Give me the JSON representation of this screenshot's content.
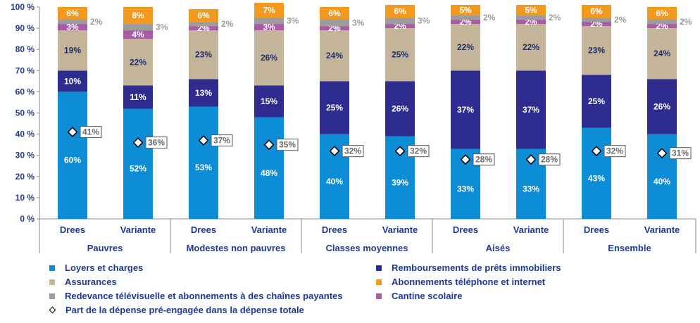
{
  "chart_data": {
    "type": "bar",
    "stacked": true,
    "ylim": [
      0,
      100
    ],
    "yticks": [
      "0 %",
      "10 %",
      "20 %",
      "30 %",
      "40 %",
      "50 %",
      "60 %",
      "70 %",
      "80 %",
      "90 %",
      "100 %"
    ],
    "groups": [
      "Pauvres",
      "Modestes non pauvres",
      "Classes moyennes",
      "Aisés",
      "Ensemble"
    ],
    "bars": [
      {
        "label": "Drees",
        "group": "Pauvres"
      },
      {
        "label": "Variante",
        "group": "Pauvres"
      },
      {
        "label": "Drees",
        "group": "Modestes non pauvres"
      },
      {
        "label": "Variante",
        "group": "Modestes non pauvres"
      },
      {
        "label": "Drees",
        "group": "Classes moyennes"
      },
      {
        "label": "Variante",
        "group": "Classes moyennes"
      },
      {
        "label": "Drees",
        "group": "Aisés"
      },
      {
        "label": "Variante",
        "group": "Aisés"
      },
      {
        "label": "Drees",
        "group": "Ensemble"
      },
      {
        "label": "Variante",
        "group": "Ensemble"
      }
    ],
    "series": [
      {
        "name": "Loyers et charges",
        "color": "#0d8dd6",
        "label_color": "#ffffff",
        "values": [
          60,
          52,
          53,
          48,
          40,
          39,
          33,
          33,
          43,
          40
        ]
      },
      {
        "name": "Remboursements de prêts immobiliers",
        "color": "#2e2d8f",
        "label_color": "#ffffff",
        "values": [
          10,
          11,
          13,
          15,
          25,
          26,
          37,
          37,
          25,
          26
        ]
      },
      {
        "name": "Assurances",
        "color": "#c4b59a",
        "label_color": "#1f2f6b",
        "values": [
          19,
          22,
          23,
          26,
          24,
          25,
          22,
          22,
          23,
          24
        ]
      },
      {
        "name": "Cantine scolaire",
        "color": "#a95aa5",
        "label_color": "#ffffff",
        "values": [
          3,
          4,
          2,
          3,
          2,
          2,
          2,
          2,
          2,
          2
        ]
      },
      {
        "name": "Redevance télévisuelle et abonnements à des chaînes payantes",
        "color": "#9c9c9c",
        "label_color": "#9c9c9c",
        "values": [
          2,
          3,
          2,
          3,
          3,
          3,
          2,
          2,
          2,
          2
        ]
      },
      {
        "name": "Abonnements téléphone et internet",
        "color": "#f39a1e",
        "label_color": "#ffffff",
        "values": [
          6,
          8,
          6,
          7,
          6,
          6,
          5,
          5,
          6,
          6
        ]
      }
    ],
    "diamond_series": {
      "name": "Part de la dépense pré-engagée dans la dépense totale",
      "values": [
        41,
        36,
        37,
        35,
        32,
        32,
        28,
        28,
        32,
        31
      ]
    },
    "legend": [
      {
        "name": "Loyers et charges",
        "color": "#0d8dd6",
        "marker": "square"
      },
      {
        "name": "Remboursements de prêts immobiliers",
        "color": "#2e2d8f",
        "marker": "square"
      },
      {
        "name": "Assurances",
        "color": "#c4b59a",
        "marker": "square"
      },
      {
        "name": "Abonnements téléphone et internet",
        "color": "#f39a1e",
        "marker": "square"
      },
      {
        "name": "Redevance télévisuelle et abonnements à des chaînes payantes",
        "color": "#9c9c9c",
        "marker": "square"
      },
      {
        "name": "Cantine scolaire",
        "color": "#a95aa5",
        "marker": "square"
      },
      {
        "name": "Part de la dépense pré-engagée dans la dépense totale",
        "color": "#000000",
        "marker": "diamond"
      }
    ]
  }
}
